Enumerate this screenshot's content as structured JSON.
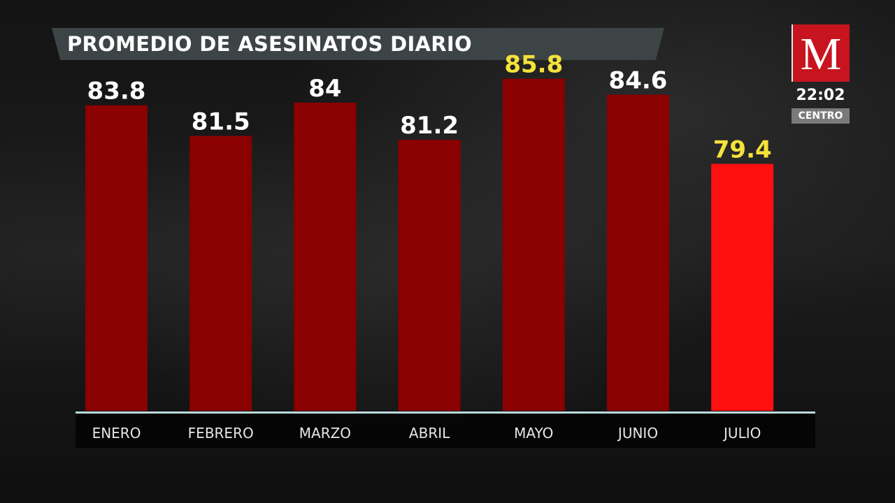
{
  "header": {
    "title": "PROMEDIO DE ASESINATOS DIARIO"
  },
  "branding": {
    "logo_letter": "M",
    "clock": "22:02",
    "zone": "CENTRO",
    "logo_color": "#c8141e"
  },
  "colors": {
    "bar_default": "#8b0000",
    "bar_highlight": "#ff0f0f",
    "label_default": "#ffffff",
    "label_highlight": "#f5e23a",
    "axis": "#bcd9dc"
  },
  "chart_data": {
    "type": "bar",
    "title": "PROMEDIO DE ASESINATOS DIARIO",
    "categories": [
      "ENERO",
      "FEBRERO",
      "MARZO",
      "ABRIL",
      "MAYO",
      "JUNIO",
      "JULIO"
    ],
    "values": [
      83.8,
      81.5,
      84,
      81.2,
      85.8,
      84.6,
      79.4
    ],
    "value_labels": [
      "83.8",
      "81.5",
      "84",
      "81.2",
      "85.8",
      "84.6",
      "79.4"
    ],
    "highlight_label_index": [
      4,
      6
    ],
    "highlight_bar_index": [
      6
    ],
    "xlabel": "",
    "ylabel": "",
    "grid": false,
    "legend": "none"
  }
}
